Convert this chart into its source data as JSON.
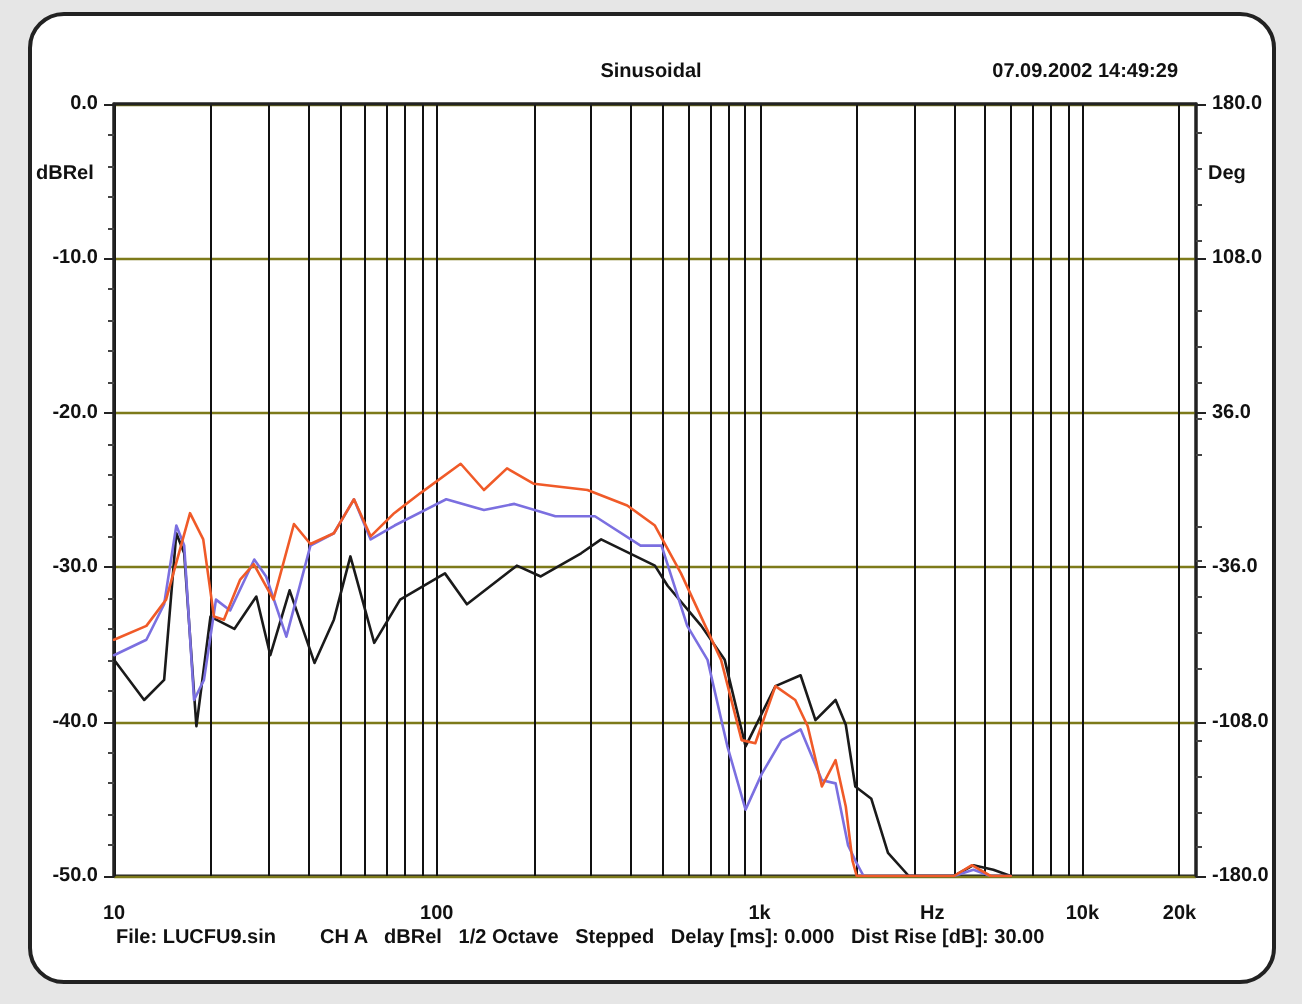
{
  "chart_data": {
    "type": "line",
    "title": "Sinusoidal",
    "subtitle": "07.09.2002 14:49:29",
    "xlabel": "Hz",
    "ylabel": "dBRel",
    "y2label": "Deg",
    "annotations": [
      "File: LUCFU9.sin",
      "CH A   dBRel   1/2 Octave   Stepped   Delay [ms]: 0.000   Dist Rise [dB]: 30.00"
    ],
    "log": "x",
    "grid": true,
    "marker": "none",
    "line_style": "solid",
    "xlim": [
      10,
      22500
    ],
    "xticks": [
      {
        "value": 10,
        "label": "10"
      },
      {
        "value": 20,
        "label": null
      },
      {
        "value": 30,
        "label": null
      },
      {
        "value": 40,
        "label": null
      },
      {
        "value": 50,
        "label": null
      },
      {
        "value": 60,
        "label": null
      },
      {
        "value": 70,
        "label": null
      },
      {
        "value": 80,
        "label": null
      },
      {
        "value": 90,
        "label": null
      },
      {
        "value": 100,
        "label": "100"
      },
      {
        "value": 200,
        "label": null
      },
      {
        "value": 300,
        "label": null
      },
      {
        "value": 400,
        "label": null
      },
      {
        "value": 500,
        "label": null
      },
      {
        "value": 600,
        "label": null
      },
      {
        "value": 700,
        "label": null
      },
      {
        "value": 800,
        "label": null
      },
      {
        "value": 900,
        "label": null
      },
      {
        "value": 1000,
        "label": "1k"
      },
      {
        "value": 2000,
        "label": null
      },
      {
        "value": 3000,
        "label": null
      },
      {
        "value": 4000,
        "label": null
      },
      {
        "value": 5000,
        "label": null
      },
      {
        "value": 6000,
        "label": null
      },
      {
        "value": 7000,
        "label": null
      },
      {
        "value": 8000,
        "label": null
      },
      {
        "value": 9000,
        "label": null
      },
      {
        "value": 10000,
        "label": "10k"
      },
      {
        "value": 20000,
        "label": "20k"
      }
    ],
    "ylim": [
      -50,
      0
    ],
    "yticks": [
      {
        "value": -50,
        "label": "-50.0"
      },
      {
        "value": -40,
        "label": "-40.0"
      },
      {
        "value": -30,
        "label": "-30.0"
      },
      {
        "value": -20,
        "label": "-20.0"
      },
      {
        "value": -10,
        "label": "-10.0"
      },
      {
        "value": 0,
        "label": "0.0"
      }
    ],
    "y2lim": [
      -180,
      180
    ],
    "y2ticks": [
      {
        "value": -180,
        "label": "-180.0"
      },
      {
        "value": -108,
        "label": "-108.0"
      },
      {
        "value": -36,
        "label": "-36.0"
      },
      {
        "value": 36,
        "label": "36.0"
      },
      {
        "value": 108,
        "label": "108.0"
      },
      {
        "value": 180,
        "label": "180.0"
      }
    ],
    "series": [
      {
        "color": "#1a1a1a",
        "x": [
          10,
          12.4,
          14.3,
          15.6,
          16.5,
          18,
          19.9,
          23.6,
          27.6,
          30.5,
          35,
          41.8,
          48,
          54,
          64,
          77,
          106,
          124,
          177,
          210,
          280,
          323,
          474,
          519,
          660,
          780,
          905,
          1120,
          1340,
          1490,
          1720,
          1850,
          1980,
          2220,
          2500,
          2900,
          4000,
          4600,
          5300,
          6000
        ],
        "values": [
          -36,
          -38.6,
          -37.3,
          -27.8,
          -29.1,
          -40.3,
          -33.2,
          -34,
          -31.9,
          -35.7,
          -31.5,
          -36.2,
          -33.4,
          -29.3,
          -34.9,
          -32.1,
          -30.4,
          -32.4,
          -29.9,
          -30.6,
          -29.1,
          -28.2,
          -29.9,
          -31.2,
          -33.8,
          -36,
          -41.6,
          -37.7,
          -37,
          -39.9,
          -38.6,
          -40.2,
          -44.2,
          -45,
          -48.5,
          -50,
          -50,
          -49.3,
          -49.6,
          -50
        ]
      },
      {
        "color": "#7b6fe0",
        "x": [
          10,
          12.6,
          14.3,
          15.6,
          16.5,
          17.7,
          19,
          20.7,
          22.9,
          27.2,
          29.6,
          34.2,
          40.6,
          48,
          55.4,
          62.4,
          74,
          107,
          140,
          174,
          233,
          309,
          428,
          497,
          597,
          690,
          795,
          905,
          1015,
          1170,
          1340,
          1560,
          1720,
          1880,
          1980,
          2100,
          4000,
          4600,
          5200,
          6000
        ],
        "values": [
          -35.7,
          -34.7,
          -32.4,
          -27.3,
          -28.6,
          -38.6,
          -37.3,
          -32.1,
          -32.8,
          -29.5,
          -30.6,
          -34.5,
          -28.6,
          -27.8,
          -25.6,
          -28.2,
          -27.3,
          -25.6,
          -26.3,
          -25.9,
          -26.7,
          -26.7,
          -28.6,
          -28.6,
          -33.8,
          -36,
          -41.6,
          -45.7,
          -43.4,
          -41.2,
          -40.5,
          -43.8,
          -44,
          -48,
          -49,
          -50,
          -50,
          -49.6,
          -50,
          -50
        ]
      },
      {
        "color": "#f05a28",
        "x": [
          10,
          12.6,
          14.5,
          17.2,
          18.9,
          20.4,
          21.9,
          24.6,
          27.1,
          31.2,
          36.1,
          40.6,
          48,
          55.4,
          62.4,
          73.8,
          89,
          118.6,
          140,
          165,
          200,
          293,
          389,
          474,
          571,
          760,
          880,
          970,
          1120,
          1290,
          1410,
          1560,
          1720,
          1850,
          1940,
          2000,
          4000,
          4550,
          5200,
          6000
        ],
        "values": [
          -34.7,
          -33.8,
          -32.1,
          -26.5,
          -28.2,
          -33.2,
          -33.4,
          -30.8,
          -29.8,
          -32.1,
          -27.2,
          -28.5,
          -27.8,
          -25.6,
          -28,
          -26.5,
          -25.2,
          -23.3,
          -25,
          -23.6,
          -24.6,
          -25,
          -26,
          -27.3,
          -30.4,
          -36,
          -41.2,
          -41.4,
          -37.7,
          -38.6,
          -40.3,
          -44.2,
          -42.5,
          -45.5,
          -49,
          -50,
          -50,
          -49.3,
          -50,
          -50
        ]
      }
    ]
  }
}
